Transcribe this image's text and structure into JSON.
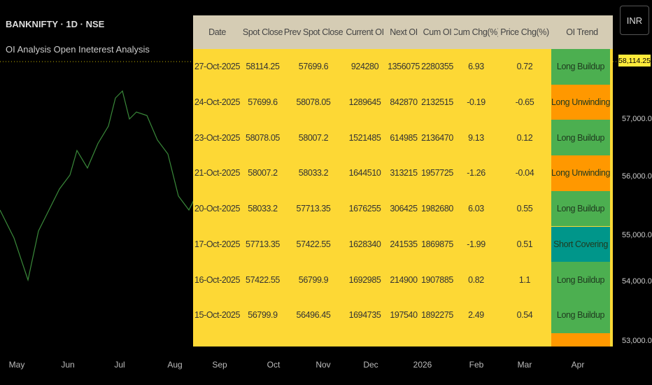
{
  "header": {
    "symbol": "BANKNIFTY · 1D · NSE",
    "indicator": "OI Analysis Open Ineterest Analysis"
  },
  "price_axis": {
    "currency": "INR",
    "last_price": "58,114.25",
    "labels": [
      "57,000.00",
      "56,000.00",
      "55,000.00",
      "54,000.00",
      "53,000.00"
    ]
  },
  "time_axis": {
    "labels": [
      "May",
      "Jun",
      "Jul",
      "Aug",
      "Sep",
      "Oct",
      "Nov",
      "Dec",
      "2026",
      "Feb",
      "Mar",
      "Apr"
    ]
  },
  "table": {
    "columns": [
      "Date",
      "Spot Close",
      "Prev Spot Close",
      "Current OI",
      "Next OI",
      "Cum OI",
      "Cum Chg(%)",
      "Price Chg(%)",
      "OI Trend"
    ],
    "rows": [
      [
        "27-Oct-2025",
        "58114.25",
        "57699.6",
        "924280",
        "1356075",
        "2280355",
        "6.93",
        "0.72",
        "Long Buildup"
      ],
      [
        "24-Oct-2025",
        "57699.6",
        "58078.05",
        "1289645",
        "842870",
        "2132515",
        "-0.19",
        "-0.65",
        "Long Unwinding"
      ],
      [
        "23-Oct-2025",
        "58078.05",
        "58007.2",
        "1521485",
        "614985",
        "2136470",
        "9.13",
        "0.12",
        "Long Buildup"
      ],
      [
        "21-Oct-2025",
        "58007.2",
        "58033.2",
        "1644510",
        "313215",
        "1957725",
        "-1.26",
        "-0.04",
        "Long Unwinding"
      ],
      [
        "20-Oct-2025",
        "58033.2",
        "57713.35",
        "1676255",
        "306425",
        "1982680",
        "6.03",
        "0.55",
        "Long Buildup"
      ],
      [
        "17-Oct-2025",
        "57713.35",
        "57422.55",
        "1628340",
        "241535",
        "1869875",
        "-1.99",
        "0.51",
        "Short Covering"
      ],
      [
        "16-Oct-2025",
        "57422.55",
        "56799.9",
        "1692985",
        "214900",
        "1907885",
        "0.82",
        "1.1",
        "Long Buildup"
      ],
      [
        "15-Oct-2025",
        "56799.9",
        "56496.45",
        "1694735",
        "197540",
        "1892275",
        "2.49",
        "0.54",
        "Long Buildup"
      ]
    ],
    "trend_colors": {
      "Long Buildup": "#4caf50",
      "Long Unwinding": "#ff9800",
      "Short Covering": "#00968a"
    }
  }
}
